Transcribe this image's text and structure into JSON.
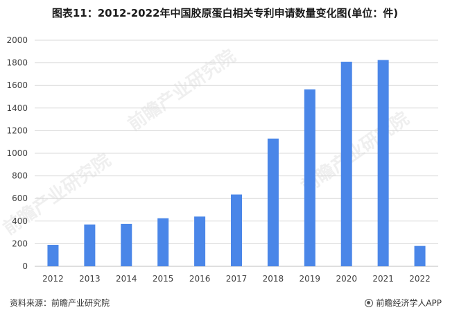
{
  "title": "图表11：2012-2022年中国胶原蛋白相关专利申请数量变化图(单位：件)",
  "source": "资料来源：前瞻产业研究院",
  "brand": "前瞻经济学人APP",
  "watermark": "前瞻产业研究院",
  "colors": {
    "bar": "#4a86e8",
    "grid": "#d9d9d9",
    "axis": "#bfbfbf"
  },
  "chart_data": {
    "type": "bar",
    "categories": [
      "2012",
      "2013",
      "2014",
      "2015",
      "2016",
      "2017",
      "2018",
      "2019",
      "2020",
      "2021",
      "2022"
    ],
    "values": [
      190,
      370,
      375,
      425,
      440,
      635,
      1130,
      1565,
      1810,
      1825,
      180
    ],
    "title": "图表11：2012-2022年中国胶原蛋白相关专利申请数量变化图(单位：件)",
    "xlabel": "",
    "ylabel": "",
    "ylim": [
      0,
      2000
    ],
    "yticks": [
      0,
      200,
      400,
      600,
      800,
      1000,
      1200,
      1400,
      1600,
      1800,
      2000
    ],
    "grid": true,
    "legend": "none"
  }
}
